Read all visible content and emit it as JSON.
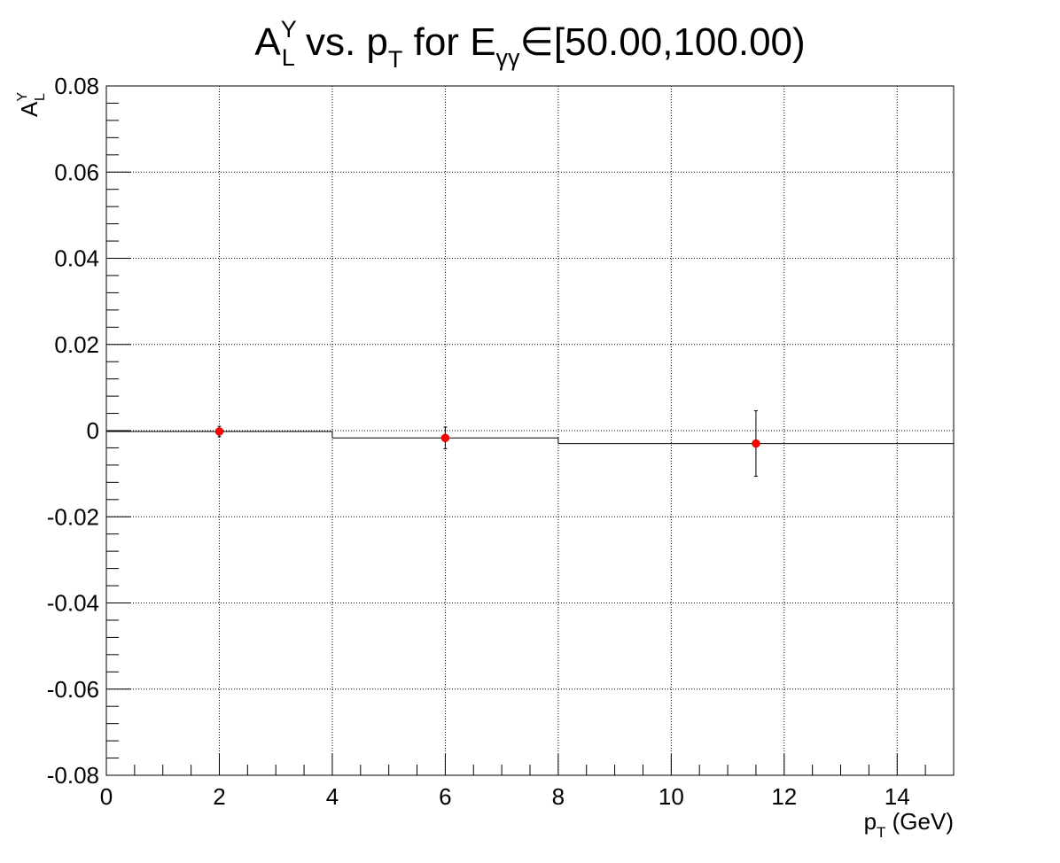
{
  "chart_data": {
    "type": "scatter",
    "title": {
      "base": "A",
      "base_sup": "Y",
      "base_sub": "L",
      "mid": " vs. p",
      "mid_sub": "T",
      "tail1": " for E",
      "tail1_sub": "γγ",
      "tail2": "∈[50.00,100.00)"
    },
    "xlabel": {
      "main": "p",
      "sub": "T",
      "rest": " (GeV)"
    },
    "ylabel": {
      "main": "A",
      "sup": "Y",
      "sub": "L"
    },
    "xlim": [
      0,
      15
    ],
    "ylim": [
      -0.08,
      0.08
    ],
    "x_ticks": [
      0,
      2,
      4,
      6,
      8,
      10,
      12,
      14
    ],
    "x_tick_labels": [
      "0",
      "2",
      "4",
      "6",
      "8",
      "10",
      "12",
      "14"
    ],
    "y_ticks": [
      -0.08,
      -0.06,
      -0.04,
      -0.02,
      0,
      0.02,
      0.04,
      0.06,
      0.08
    ],
    "y_tick_labels": [
      "-0.08",
      "-0.06",
      "-0.04",
      "-0.02",
      "0",
      "0.02",
      "0.04",
      "0.06",
      "0.08"
    ],
    "grid": true,
    "marker_color": "#ff0000",
    "series": [
      {
        "x": [
          2.0,
          6.0,
          11.5
        ],
        "y": [
          -0.0002,
          -0.0017,
          -0.003
        ],
        "yerr": [
          0.0012,
          0.0025,
          0.0076
        ]
      }
    ],
    "fit_steps": [
      {
        "x0": 0,
        "x1": 4,
        "y": -0.0002
      },
      {
        "x0": 4,
        "x1": 8,
        "y": -0.0017
      },
      {
        "x0": 8,
        "x1": 15,
        "y": -0.003
      }
    ]
  }
}
